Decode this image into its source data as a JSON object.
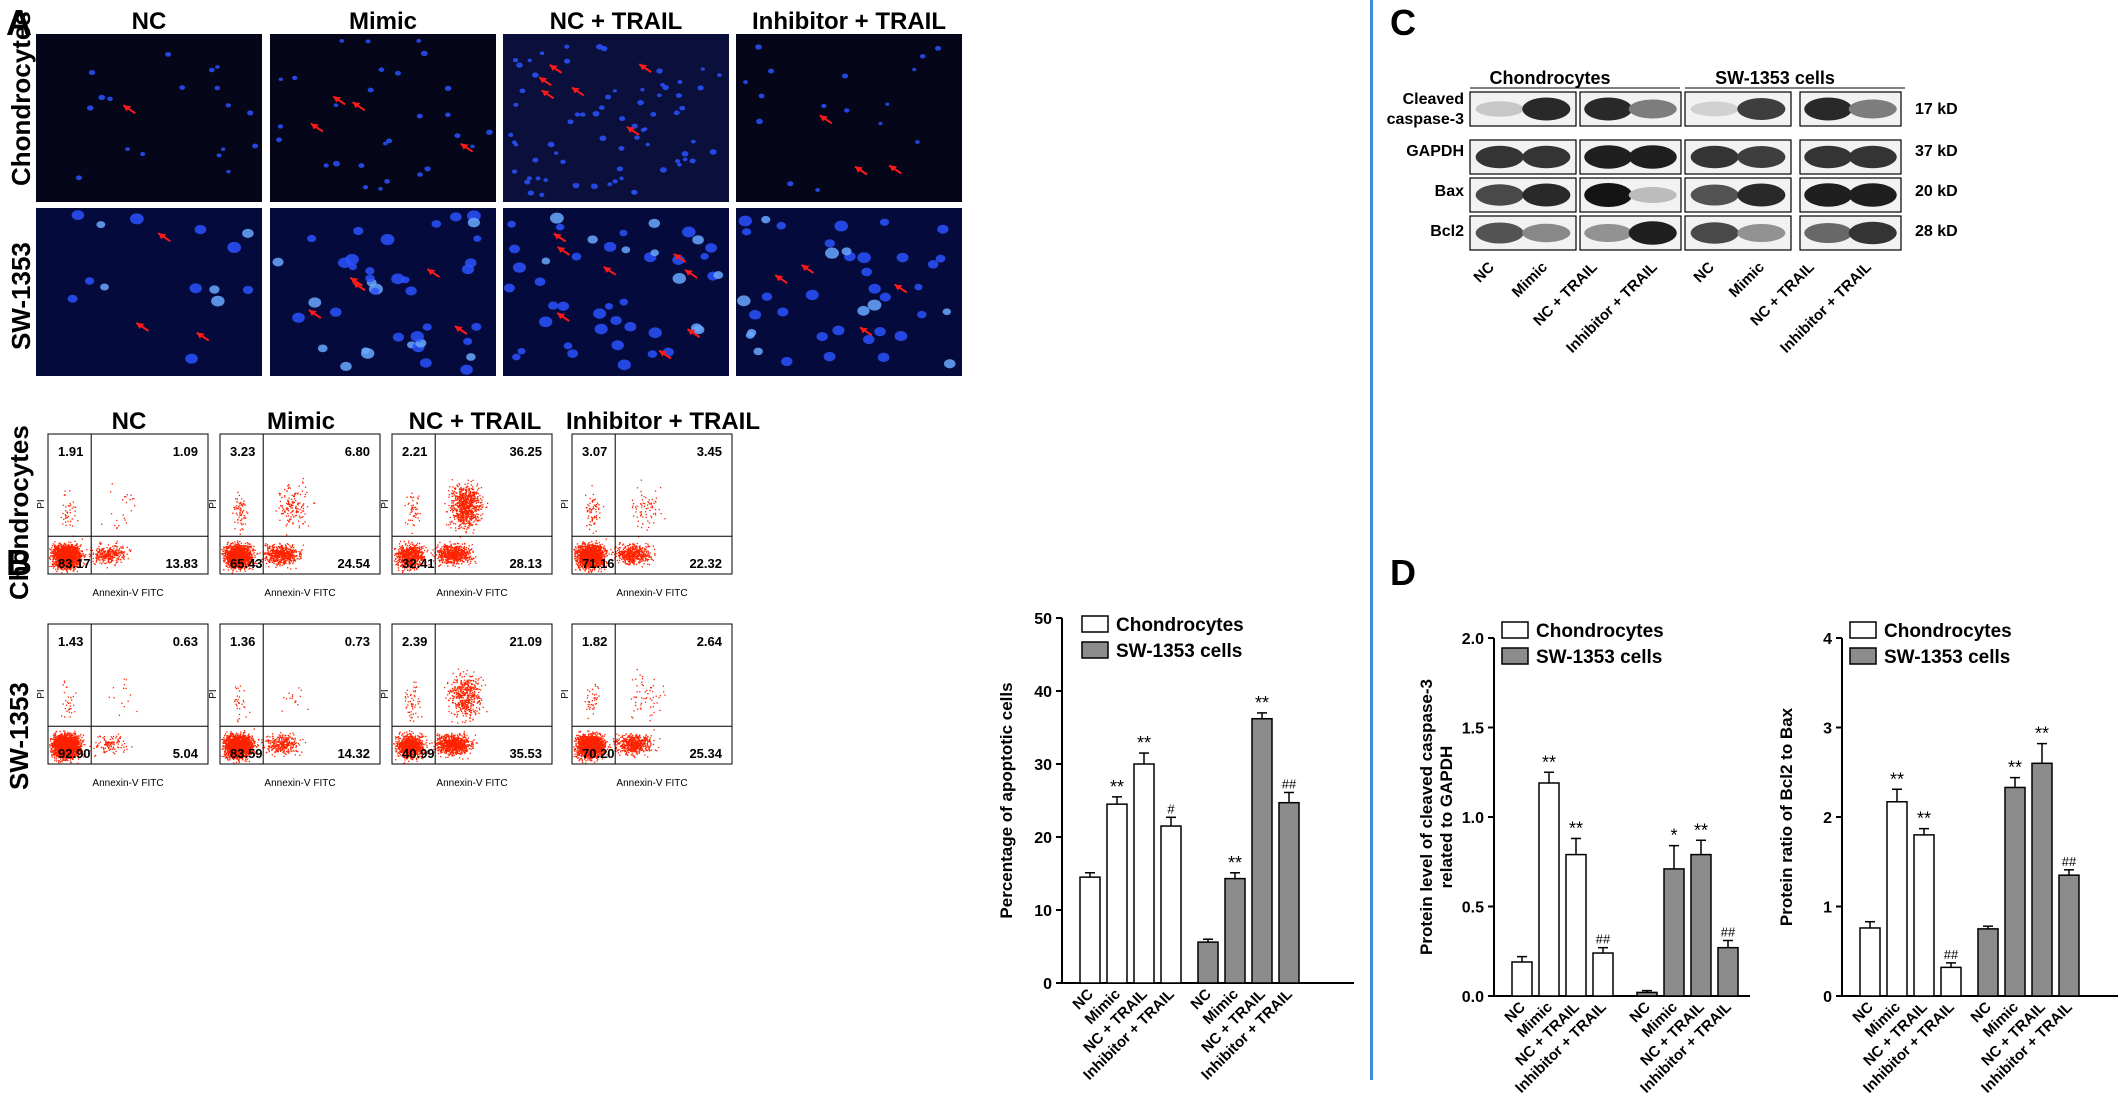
{
  "panels": {
    "a": "A",
    "b": "B",
    "c": "C",
    "d": "D"
  },
  "groups": [
    "NC",
    "Mimic",
    "NC + TRAIL",
    "Inhibitor + TRAIL"
  ],
  "rows": {
    "chondrocytes": "Chondrocytes",
    "sw": "SW-1353"
  },
  "flow": {
    "xlabel": "Annexin-V FITC",
    "ylabel": "PI",
    "chondrocytes": [
      {
        "ul": "1.91",
        "ur": "1.09",
        "ll": "83.17",
        "lr": "13.83"
      },
      {
        "ul": "3.23",
        "ur": "6.80",
        "ll": "65.43",
        "lr": "24.54"
      },
      {
        "ul": "2.21",
        "ur": "36.25",
        "ll": "32.41",
        "lr": "28.13"
      },
      {
        "ul": "3.07",
        "ur": "3.45",
        "ll": "71.16",
        "lr": "22.32"
      }
    ],
    "sw": [
      {
        "ul": "1.43",
        "ur": "0.63",
        "ll": "92.90",
        "lr": "5.04"
      },
      {
        "ul": "1.36",
        "ur": "0.73",
        "ll": "83.59",
        "lr": "14.32"
      },
      {
        "ul": "2.39",
        "ur": "21.09",
        "ll": "40.99",
        "lr": "35.53"
      },
      {
        "ul": "1.82",
        "ur": "2.64",
        "ll": "70.20",
        "lr": "25.34"
      }
    ]
  },
  "western": {
    "groups": [
      "Chondrocytes",
      "SW-1353 cells"
    ],
    "proteins": [
      "Cleaved caspase-3",
      "GAPDH",
      "Bax",
      "Bcl2"
    ],
    "sizes": [
      "17 kD",
      "37 kD",
      "20 kD",
      "28 kD"
    ],
    "lanes": [
      "NC",
      "Mimic",
      "NC + TRAIL",
      "Inhibitor + TRAIL",
      "NC",
      "Mimic",
      "NC + TRAIL",
      "Inhibitor + TRAIL"
    ]
  },
  "legend": {
    "chondrocytes": "Chondrocytes",
    "sw": "SW-1353 cells"
  },
  "colors": {
    "chondrocytes": "#ffffff",
    "sw": "#8c8c8c",
    "dots": "#ff2200",
    "arrow": "#ff1a1a",
    "nuclei": "#2a52ff",
    "divider": "#3a8fd6"
  },
  "chart_data": [
    {
      "type": "bar",
      "ylabel": "Percentage of apoptotic cells",
      "ylim": [
        0,
        50
      ],
      "yticks": [
        0,
        10,
        20,
        30,
        40,
        50
      ],
      "categories": [
        "NC",
        "Mimic",
        "NC + TRAIL",
        "Inhibitor + TRAIL"
      ],
      "series": [
        {
          "name": "Chondrocytes",
          "values": [
            14.5,
            24.5,
            30,
            21.5
          ],
          "errors": [
            0.6,
            1,
            1.5,
            1.2
          ],
          "marks": [
            "",
            "**",
            "**",
            "#"
          ]
        },
        {
          "name": "SW-1353 cells",
          "values": [
            5.6,
            14.3,
            36.2,
            24.7
          ],
          "errors": [
            0.4,
            0.8,
            0.8,
            1.4
          ],
          "marks": [
            "",
            "**",
            "**",
            "##"
          ]
        }
      ]
    },
    {
      "type": "bar",
      "ylabel": "Protein level of cleaved caspase-3 related to GAPDH",
      "ylim": [
        0,
        2
      ],
      "yticks": [
        "0.0",
        "0.5",
        "1.0",
        "1.5",
        "2.0"
      ],
      "categories": [
        "NC",
        "Mimic",
        "NC + TRAIL",
        "Inhibitor + TRAIL"
      ],
      "series": [
        {
          "name": "Chondrocytes",
          "values": [
            0.19,
            1.19,
            0.79,
            0.24
          ],
          "errors": [
            0.03,
            0.06,
            0.09,
            0.03
          ],
          "marks": [
            "",
            "**",
            "**",
            "##"
          ]
        },
        {
          "name": "SW-1353 cells",
          "values": [
            0.02,
            0.71,
            0.79,
            0.27
          ],
          "errors": [
            0.01,
            0.13,
            0.08,
            0.04
          ],
          "marks": [
            "",
            "*",
            "**",
            "##"
          ]
        }
      ]
    },
    {
      "type": "bar",
      "ylabel": "Protein ratio of Bcl2 to Bax",
      "ylim": [
        0,
        4
      ],
      "yticks": [
        0,
        1,
        2,
        3,
        4
      ],
      "categories": [
        "NC",
        "Mimic",
        "NC + TRAIL",
        "Inhibitor + TRAIL"
      ],
      "series": [
        {
          "name": "Chondrocytes",
          "values": [
            0.76,
            2.17,
            1.8,
            0.32
          ],
          "errors": [
            0.07,
            0.14,
            0.07,
            0.05
          ],
          "marks": [
            "",
            "**",
            "**",
            "##"
          ]
        },
        {
          "name": "SW-1353 cells",
          "values": [
            0.75,
            2.33,
            2.6,
            1.35
          ],
          "errors": [
            0.03,
            0.11,
            0.22,
            0.06
          ],
          "marks": [
            "",
            "**",
            "**",
            "##"
          ]
        }
      ]
    }
  ]
}
